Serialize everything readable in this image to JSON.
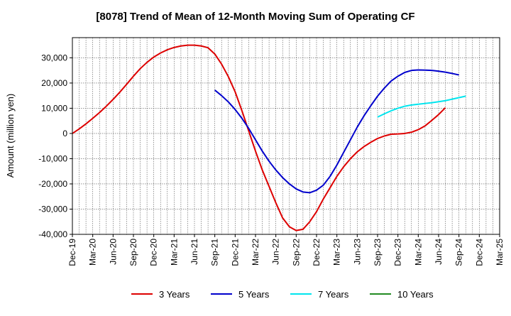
{
  "chart_data": {
    "type": "line",
    "title": "[8078]  Trend of Mean of 12-Month Moving Sum of Operating CF",
    "xlabel": "",
    "ylabel": "Amount (million yen)",
    "ylim": [
      -40000,
      38000
    ],
    "y_ticks": [
      30000,
      20000,
      10000,
      0,
      -10000,
      -20000,
      -30000,
      -40000
    ],
    "y_tick_labels": [
      "30,000",
      "20,000",
      "10,000",
      "0",
      "-10,000",
      "-20,000",
      "-30,000",
      "-40,000"
    ],
    "x_start": "Dec-19",
    "x_ticks": [
      "Dec-19",
      "Mar-20",
      "Jun-20",
      "Sep-20",
      "Dec-20",
      "Mar-21",
      "Jun-21",
      "Sep-21",
      "Dec-21",
      "Mar-22",
      "Jun-22",
      "Sep-22",
      "Dec-22",
      "Mar-23",
      "Jun-23",
      "Sep-23",
      "Dec-23",
      "Mar-24",
      "Jun-24",
      "Sep-24",
      "Dec-24",
      "Mar-25"
    ],
    "grid": true,
    "legend_position": "bottom",
    "series": [
      {
        "name": "3 Years",
        "color": "#dd0000",
        "start_index": 0,
        "values": [
          0,
          1800,
          3800,
          6000,
          8300,
          10800,
          13500,
          16400,
          19500,
          22700,
          25700,
          28200,
          30300,
          31900,
          33200,
          34100,
          34700,
          35000,
          35000,
          34700,
          34000,
          31500,
          27500,
          22500,
          16500,
          9000,
          1000,
          -7000,
          -14500,
          -21000,
          -27500,
          -33500,
          -37000,
          -38500,
          -38000,
          -35000,
          -31000,
          -26000,
          -21500,
          -17000,
          -13200,
          -10000,
          -7300,
          -5200,
          -3500,
          -2000,
          -1000,
          -300,
          -200,
          0,
          500,
          1500,
          3000,
          5200,
          7500,
          10200
        ]
      },
      {
        "name": "5 Years",
        "color": "#0000cc",
        "start_index": 21,
        "values": [
          17200,
          15000,
          12500,
          9500,
          6000,
          2000,
          -2500,
          -7000,
          -11000,
          -14500,
          -17500,
          -20000,
          -22000,
          -23200,
          -23500,
          -22500,
          -20500,
          -17000,
          -12500,
          -7500,
          -2500,
          2500,
          7000,
          11000,
          14800,
          18000,
          20800,
          22700,
          24200,
          25000,
          25200,
          25100,
          25000,
          24700,
          24300,
          23800,
          23200
        ]
      },
      {
        "name": "7 Years",
        "color": "#00e5ee",
        "start_index": 45,
        "values": [
          6500,
          7800,
          9000,
          10000,
          10800,
          11300,
          11600,
          11900,
          12200,
          12600,
          13000,
          13600,
          14200,
          14800
        ]
      },
      {
        "name": "10 Years",
        "color": "#228b22",
        "start_index": 0,
        "values": []
      }
    ]
  }
}
